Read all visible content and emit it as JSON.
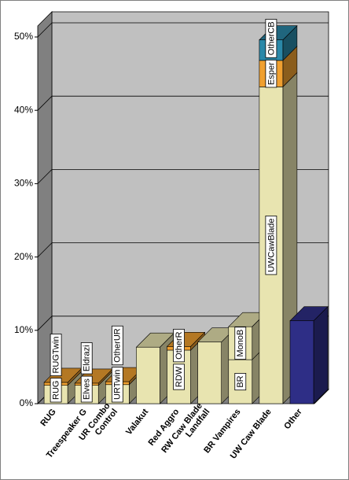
{
  "chart_data": {
    "type": "stacked-bar-3d",
    "categories": [
      "RUG",
      "Treespeaker G",
      "UR Combo\nControl",
      "Valakut",
      "Red Aggro",
      "RW Caw Blade\nLandfall",
      "BR Vampires",
      "UW Caw Blade",
      "Other"
    ],
    "stacks": [
      [
        {
          "value": 2.5,
          "color": "#e8e4b0",
          "label": "RUG"
        },
        {
          "value": 0.4,
          "color": "#f0a030",
          "label": "RUGTwin"
        }
      ],
      [
        {
          "value": 2.5,
          "color": "#e8e4b0",
          "label": "Elves"
        },
        {
          "value": 0.3,
          "color": "#f0a030",
          "label": "Eldrazi"
        }
      ],
      [
        {
          "value": 2.6,
          "color": "#e8e4b0",
          "label": "URTwin"
        },
        {
          "value": 0.4,
          "color": "#f0a030",
          "label": "OtherUR"
        }
      ],
      [
        {
          "value": 7.7,
          "color": "#e8e4b0"
        }
      ],
      [
        {
          "value": 7.3,
          "color": "#e8e4b0",
          "label": "RDW"
        },
        {
          "value": 0.5,
          "color": "#f0a030",
          "label": "OtherR"
        }
      ],
      [
        {
          "value": 8.4,
          "color": "#e8e4b0"
        }
      ],
      [
        {
          "value": 6,
          "color": "#e8e4b0",
          "label": "BR"
        },
        {
          "value": 4.5,
          "color": "#e8e4b0",
          "label": "MonoB"
        }
      ],
      [
        {
          "value": 43.2,
          "color": "#e8e4b0",
          "label": "UWCawBlade"
        },
        {
          "value": 3.6,
          "color": "#f0a030",
          "label": "Esper"
        },
        {
          "value": 2.8,
          "color": "#2a88a8",
          "label": "OtherCB"
        }
      ],
      [
        {
          "value": 11.3,
          "color": "#2e2e86"
        }
      ]
    ],
    "ylim": [
      0,
      50
    ],
    "yticks": [
      {
        "value": 0,
        "label": "0%"
      },
      {
        "value": 10,
        "label": "10%"
      },
      {
        "value": 20,
        "label": "20%"
      },
      {
        "value": 30,
        "label": "30%"
      },
      {
        "value": 40,
        "label": "40%"
      },
      {
        "value": 50,
        "label": "50%"
      }
    ],
    "grid": true
  }
}
